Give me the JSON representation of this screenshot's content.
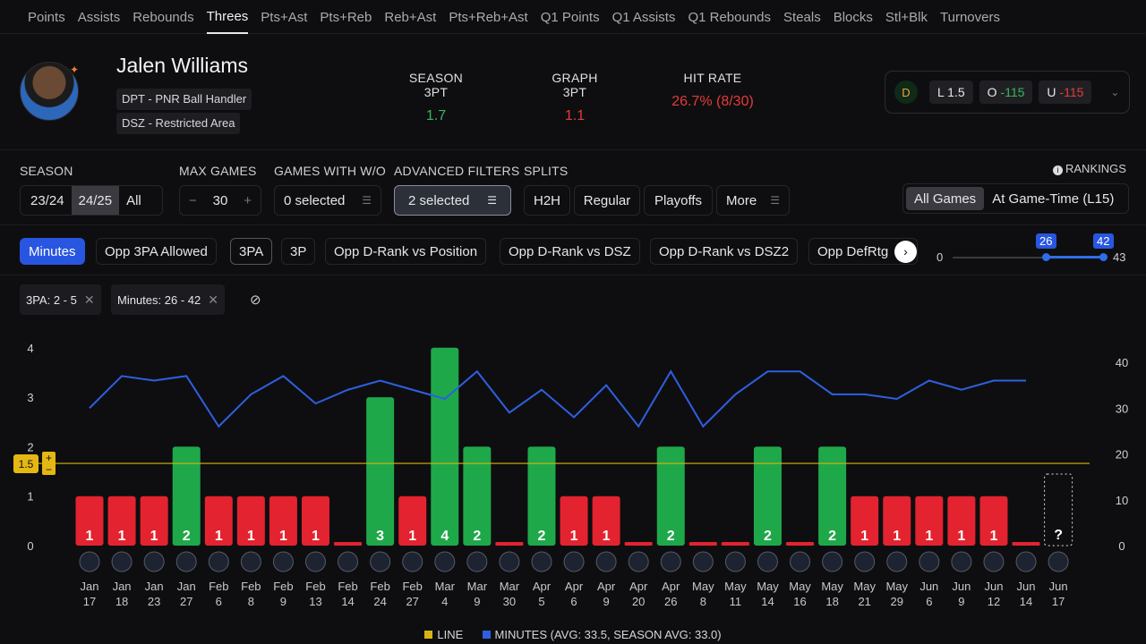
{
  "tabs": [
    {
      "label": "Points",
      "active": false
    },
    {
      "label": "Assists",
      "active": false
    },
    {
      "label": "Rebounds",
      "active": false
    },
    {
      "label": "Threes",
      "active": true
    },
    {
      "label": "Pts+Ast",
      "active": false
    },
    {
      "label": "Pts+Reb",
      "active": false
    },
    {
      "label": "Reb+Ast",
      "active": false
    },
    {
      "label": "Pts+Reb+Ast",
      "active": false
    },
    {
      "label": "Q1 Points",
      "active": false
    },
    {
      "label": "Q1 Assists",
      "active": false
    },
    {
      "label": "Q1 Rebounds",
      "active": false
    },
    {
      "label": "Steals",
      "active": false
    },
    {
      "label": "Blocks",
      "active": false
    },
    {
      "label": "Stl+Blk",
      "active": false
    },
    {
      "label": "Turnovers",
      "active": false
    }
  ],
  "player": {
    "name": "Jalen Williams",
    "badge1": "DPT - PNR Ball Handler",
    "badge2": "DSZ - Restricted Area"
  },
  "stats": {
    "season_label": "SEASON 3PT",
    "season_value": "1.7",
    "graph_label": "GRAPH 3PT",
    "graph_value": "1.1",
    "hit_label": "HIT RATE",
    "hit_value": "26.7% (8/30)"
  },
  "odds": {
    "line": "L 1.5",
    "over_label": "O",
    "over_value": "-115",
    "under_label": "U",
    "under_value": "-115"
  },
  "filters": {
    "season_label": "SEASON",
    "season_options": [
      "23/24",
      "24/25",
      "All"
    ],
    "max_games_label": "MAX GAMES",
    "max_games_value": "30",
    "minus": "−",
    "plus": "+",
    "with_wo_label": "GAMES WITH W/O",
    "with_wo_value": "0 selected",
    "advanced_label": "ADVANCED FILTERS",
    "advanced_value": "2 selected",
    "splits_label": "SPLITS",
    "splits": [
      "H2H",
      "Regular",
      "Playoffs",
      "More"
    ],
    "rankings_label": "RANKINGS",
    "rank_all": "All Games",
    "rank_gametime": "At Game-Time (L15)"
  },
  "metrics": [
    "Minutes",
    "Opp 3PA Allowed",
    "3PA",
    "3P",
    "Opp D-Rank vs Position",
    "Opp D-Rank vs DSZ",
    "Opp D-Rank vs DSZ2",
    "Opp DefRtg"
  ],
  "slider": {
    "min": "0",
    "max": "43",
    "low": "26",
    "high": "42",
    "low_frac": 0.605,
    "high_frac": 0.977
  },
  "active_filters": [
    "3PA: 2 - 5",
    "Minutes: 26 - 42"
  ],
  "legend": {
    "line": "LINE",
    "minutes": "MINUTES (AVG: 33.5, SEASON AVG: 33.0)"
  },
  "colors": {
    "hit": "#1fa84a",
    "miss": "#e3232f",
    "line": "#d8b410",
    "minutes": "#2f5fe0",
    "blue": "#2856e0"
  },
  "chart_data": {
    "type": "bar",
    "line_value": 1.5,
    "ylim": [
      0,
      4
    ],
    "yticks": [
      "0",
      "1",
      "2",
      "3",
      "4"
    ],
    "y2ticks": [
      "0",
      "10",
      "20",
      "30",
      "40"
    ],
    "y2lim": [
      0,
      40
    ],
    "games": [
      {
        "m": "Jan",
        "d": "17",
        "v": 1,
        "min": 30,
        "opp": "CLE"
      },
      {
        "m": "Jan",
        "d": "18",
        "v": 1,
        "min": 37,
        "opp": "DAL"
      },
      {
        "m": "Jan",
        "d": "23",
        "v": 1,
        "min": 36,
        "opp": "UTA"
      },
      {
        "m": "Jan",
        "d": "27",
        "v": 2,
        "min": 37,
        "opp": "POR"
      },
      {
        "m": "Feb",
        "d": "6",
        "v": 1,
        "min": 26,
        "opp": "PHX"
      },
      {
        "m": "Feb",
        "d": "8",
        "v": 1,
        "min": 33,
        "opp": "TOR"
      },
      {
        "m": "Feb",
        "d": "9",
        "v": 1,
        "min": 37,
        "opp": "MEM"
      },
      {
        "m": "Feb",
        "d": "13",
        "v": 1,
        "min": 31,
        "opp": "MIA"
      },
      {
        "m": "Feb",
        "d": "14",
        "v": 0,
        "min": 34,
        "opp": "MIN"
      },
      {
        "m": "Feb",
        "d": "24",
        "v": 3,
        "min": 36,
        "opp": "MIN"
      },
      {
        "m": "Feb",
        "d": "27",
        "v": 1,
        "min": 34,
        "opp": "BKN"
      },
      {
        "m": "Mar",
        "d": "4",
        "v": 4,
        "min": 32,
        "opp": "HOU"
      },
      {
        "m": "Mar",
        "d": "9",
        "v": 2,
        "min": 38,
        "opp": "DEN"
      },
      {
        "m": "Mar",
        "d": "30",
        "v": 0,
        "min": 29,
        "opp": "IND"
      },
      {
        "m": "Apr",
        "d": "5",
        "v": 2,
        "min": 34,
        "opp": "HOU"
      },
      {
        "m": "Apr",
        "d": "6",
        "v": 1,
        "min": 28,
        "opp": "LAL"
      },
      {
        "m": "Apr",
        "d": "9",
        "v": 1,
        "min": 35,
        "opp": "LAL"
      },
      {
        "m": "Apr",
        "d": "20",
        "v": 0,
        "min": 26,
        "opp": "MEM"
      },
      {
        "m": "Apr",
        "d": "26",
        "v": 2,
        "min": 38,
        "opp": "MEM"
      },
      {
        "m": "May",
        "d": "8",
        "v": 0,
        "min": 26,
        "opp": "DEN"
      },
      {
        "m": "May",
        "d": "11",
        "v": 0,
        "min": 33,
        "opp": "DEN"
      },
      {
        "m": "May",
        "d": "14",
        "v": 2,
        "min": 38,
        "opp": "DEN"
      },
      {
        "m": "May",
        "d": "16",
        "v": 0,
        "min": 38,
        "opp": "DEN"
      },
      {
        "m": "May",
        "d": "18",
        "v": 2,
        "min": 33,
        "opp": "DEN"
      },
      {
        "m": "May",
        "d": "21",
        "v": 1,
        "min": 33,
        "opp": "MIN"
      },
      {
        "m": "May",
        "d": "29",
        "v": 1,
        "min": 32,
        "opp": "MIN"
      },
      {
        "m": "Jun",
        "d": "6",
        "v": 1,
        "min": 36,
        "opp": "IND"
      },
      {
        "m": "Jun",
        "d": "9",
        "v": 1,
        "min": 34,
        "opp": "IND"
      },
      {
        "m": "Jun",
        "d": "12",
        "v": 1,
        "min": 36,
        "opp": "IND"
      },
      {
        "m": "Jun",
        "d": "14",
        "v": 0,
        "min": 36,
        "opp": "IND"
      },
      {
        "m": "Jun",
        "d": "17",
        "v": null,
        "min": null,
        "opp": "IND"
      }
    ]
  }
}
